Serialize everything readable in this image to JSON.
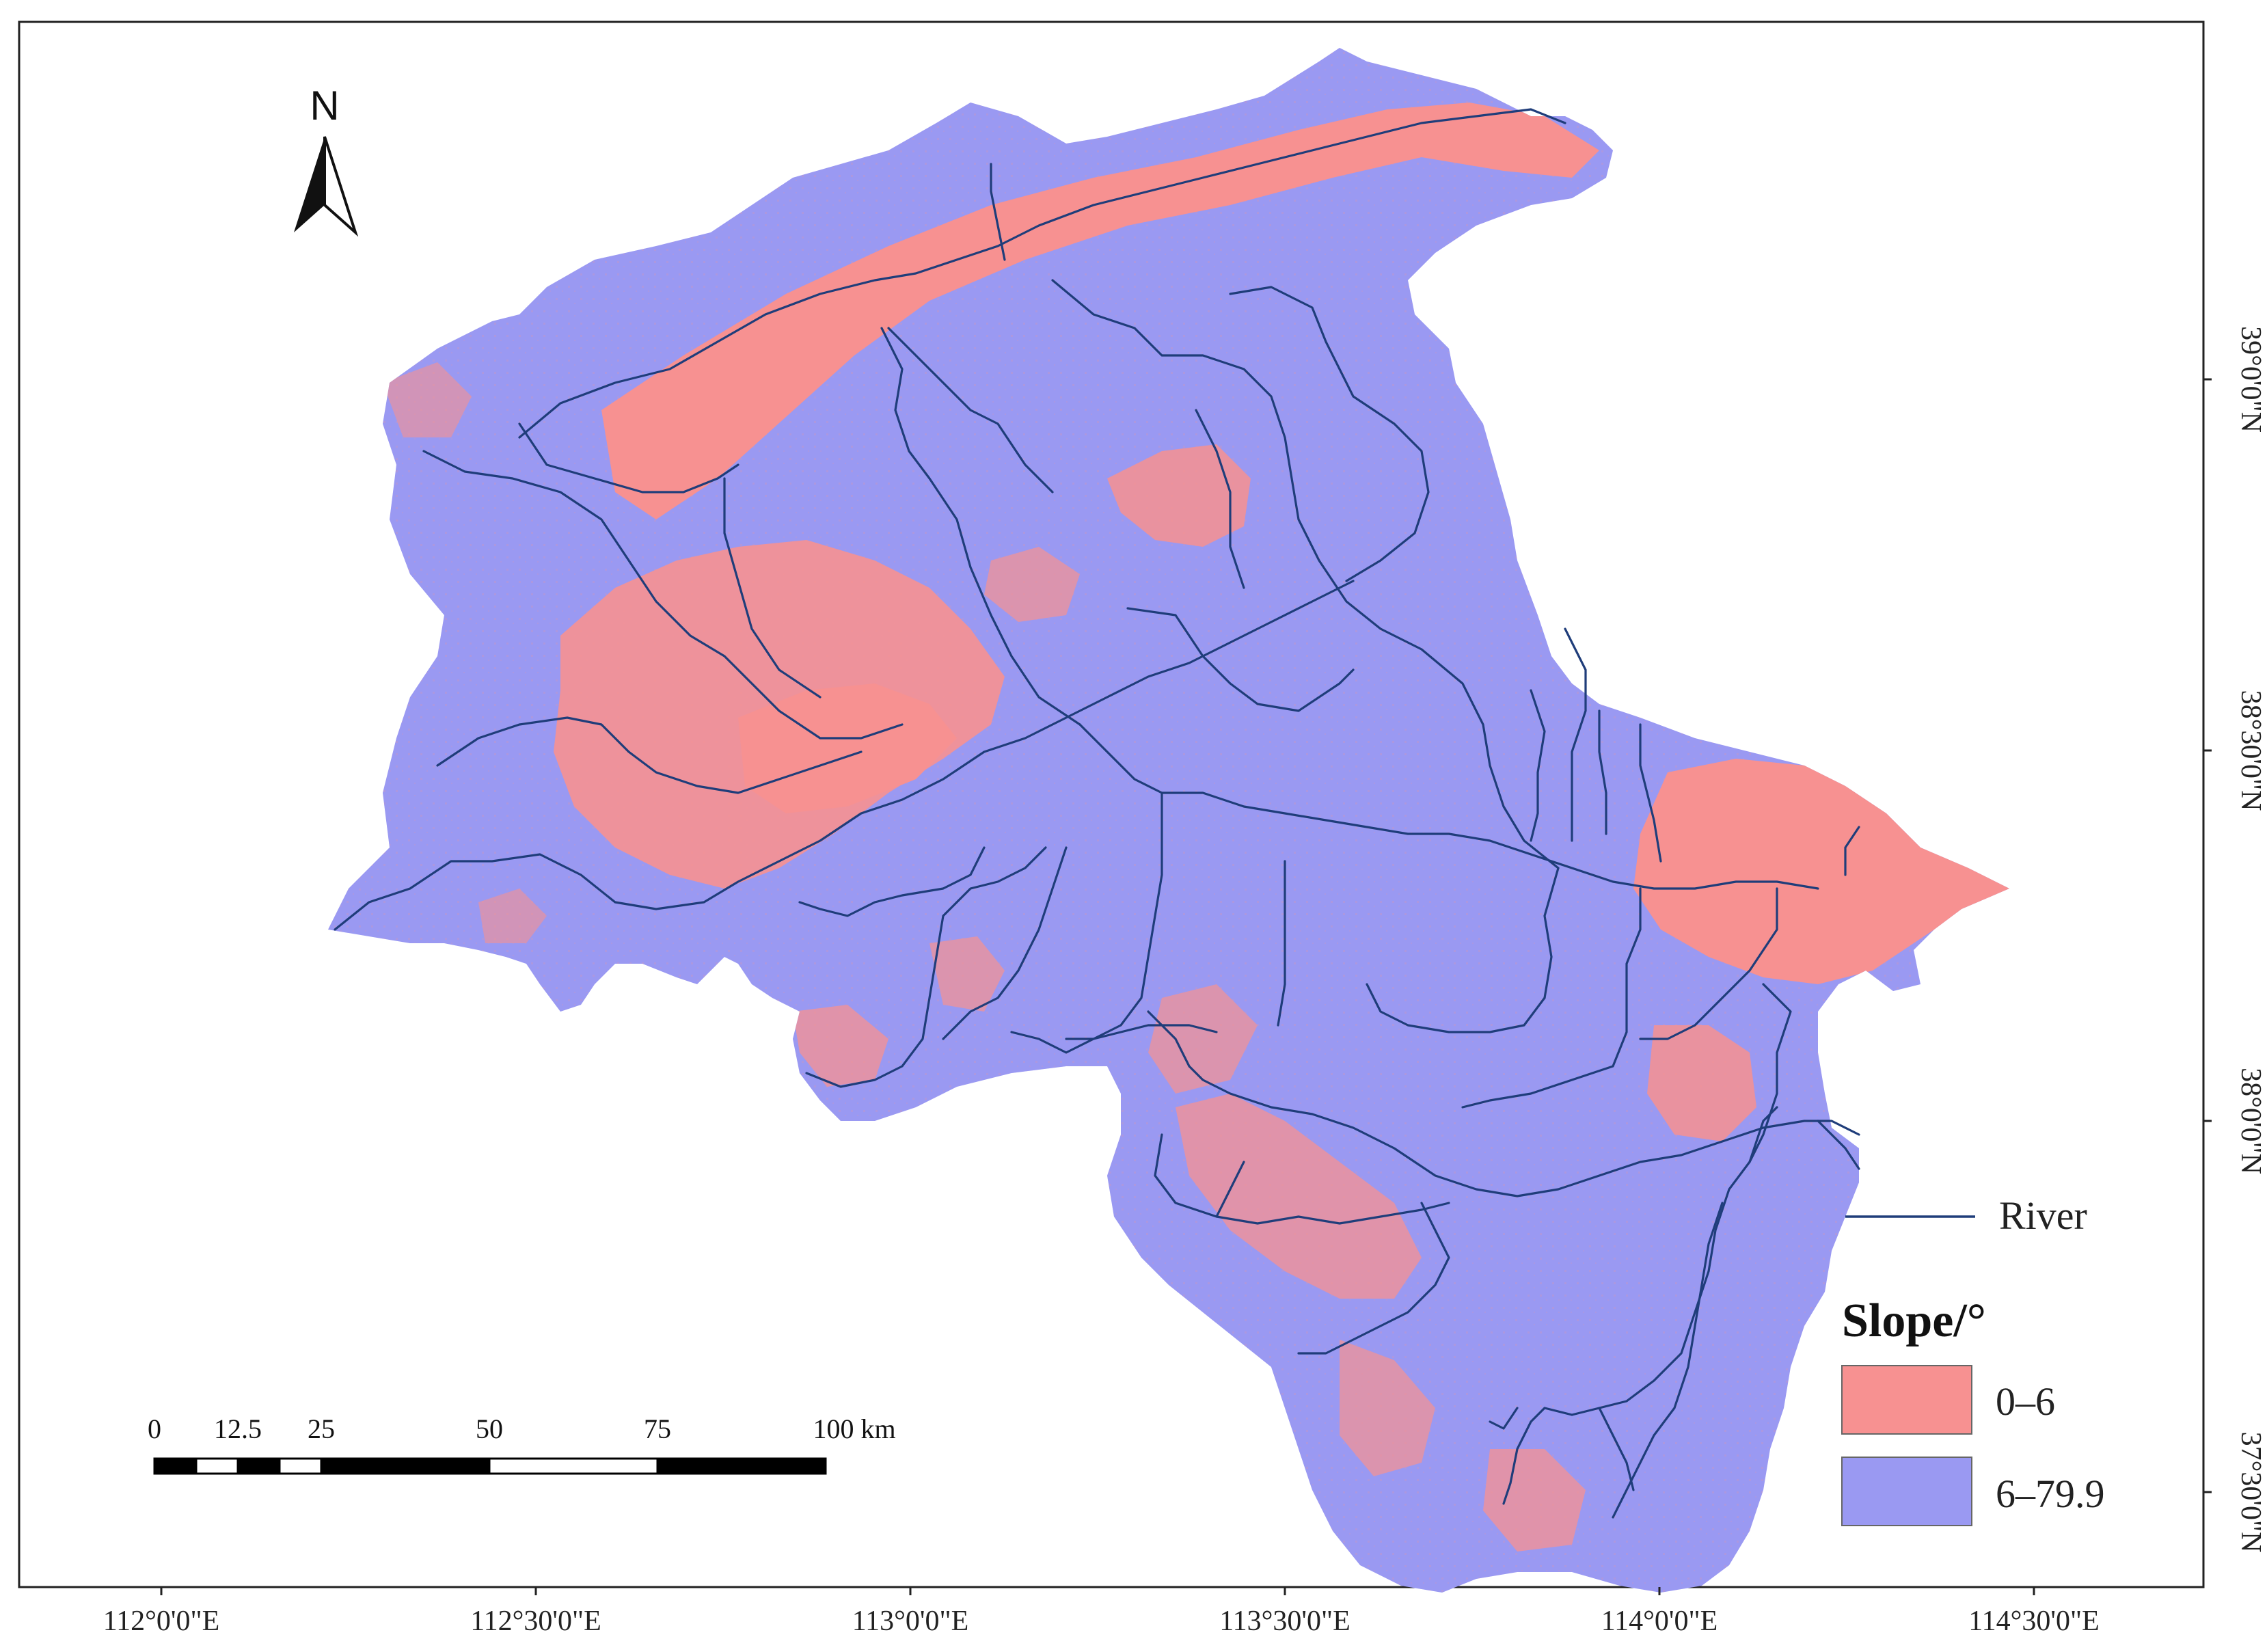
{
  "map": {
    "north_label": "N",
    "x_ticks": [
      "112°0'0\"E",
      "112°30'0\"E",
      "113°0'0\"E",
      "113°30'0\"E",
      "114°0'0\"E",
      "114°30'0\"E"
    ],
    "y_ticks": [
      "39°0'0\"N",
      "38°30'0\"N",
      "38°0'0\"N",
      "37°30'0\"N"
    ],
    "legend": {
      "river_label": "River",
      "title": "Slope/°",
      "classes": [
        {
          "label": "0–6",
          "color": "#f79191"
        },
        {
          "label": "6–79.9",
          "color": "#9a99f2"
        }
      ],
      "river_color": "#1f3d7a"
    },
    "scale_bar": {
      "labels": [
        "0",
        "12.5",
        "25",
        "50",
        "75",
        "100 km"
      ]
    }
  }
}
